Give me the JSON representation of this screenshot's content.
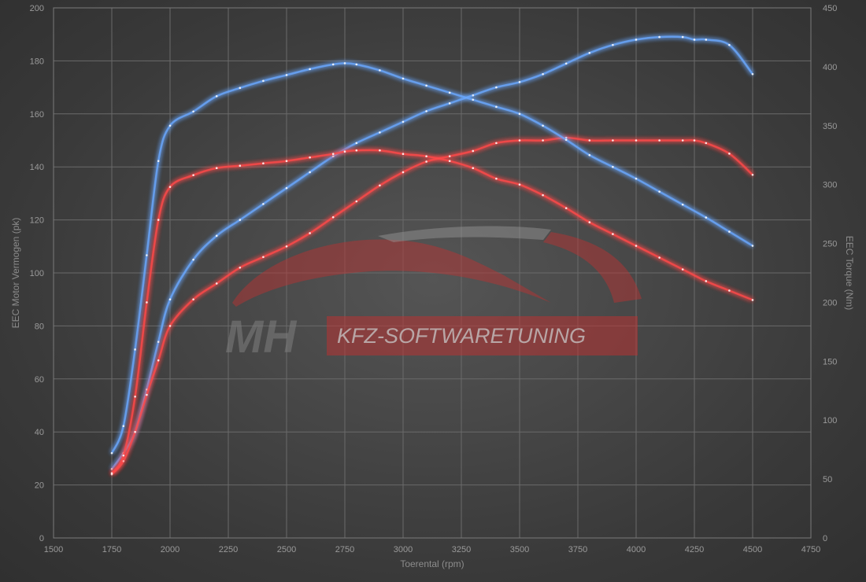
{
  "chart_data": {
    "type": "line",
    "xlabel": "Toerental (rpm)",
    "ylabel_left": "EEC Motor Vermogen (pk)",
    "ylabel_right": "EEC Torque (Nm)",
    "xlim": [
      1500,
      4750
    ],
    "xticks": [
      1500,
      1750,
      2000,
      2250,
      2500,
      2750,
      3000,
      3250,
      3500,
      3750,
      4000,
      4250,
      4500,
      4750
    ],
    "ylim_left": [
      0,
      200
    ],
    "yticks_left": [
      0,
      20,
      40,
      60,
      80,
      100,
      120,
      140,
      160,
      180,
      200
    ],
    "ylim_right": [
      0,
      450
    ],
    "yticks_right": [
      0,
      50,
      100,
      150,
      200,
      250,
      300,
      350,
      400,
      450
    ],
    "grid": true,
    "colors": {
      "tuned": "#6aa8ff",
      "stock": "#ff4a4a"
    },
    "series": [
      {
        "axis": "left",
        "color": "tuned",
        "x": [
          1750,
          1800,
          1850,
          1900,
          1950,
          2000,
          2100,
          2200,
          2300,
          2400,
          2500,
          2600,
          2700,
          2800,
          2900,
          3000,
          3100,
          3200,
          3300,
          3400,
          3500,
          3600,
          3700,
          3800,
          3900,
          4000,
          4100,
          4200,
          4250,
          4300,
          4400,
          4500
        ],
        "y": [
          26,
          32,
          40,
          56,
          74,
          90,
          105,
          114,
          120,
          126,
          132,
          138,
          144,
          149,
          153,
          157,
          161,
          164,
          167,
          170,
          172,
          175,
          179,
          183,
          186,
          188,
          189,
          189,
          188,
          188,
          186,
          175
        ]
      },
      {
        "axis": "left",
        "color": "stock",
        "x": [
          1750,
          1800,
          1850,
          1900,
          1950,
          2000,
          2100,
          2200,
          2300,
          2400,
          2500,
          2600,
          2700,
          2800,
          2900,
          3000,
          3100,
          3200,
          3300,
          3400,
          3500,
          3600,
          3700,
          3800,
          3900,
          4000,
          4100,
          4200,
          4250,
          4300,
          4400,
          4500
        ],
        "y": [
          24,
          29,
          40,
          54,
          67,
          80,
          90,
          96,
          102,
          106,
          110,
          115,
          121,
          127,
          133,
          138,
          142,
          144,
          146,
          149,
          150,
          150,
          151,
          150,
          150,
          150,
          150,
          150,
          150,
          149,
          145,
          137
        ]
      },
      {
        "axis": "right",
        "color": "tuned",
        "x": [
          1750,
          1800,
          1850,
          1900,
          1950,
          2000,
          2100,
          2200,
          2300,
          2400,
          2500,
          2600,
          2700,
          2750,
          2800,
          2900,
          3000,
          3100,
          3200,
          3300,
          3400,
          3500,
          3600,
          3700,
          3800,
          3900,
          4000,
          4100,
          4200,
          4300,
          4400,
          4500
        ],
        "y": [
          72,
          95,
          160,
          240,
          320,
          350,
          362,
          375,
          382,
          388,
          393,
          398,
          402,
          403,
          402,
          397,
          390,
          384,
          378,
          372,
          366,
          360,
          350,
          338,
          325,
          315,
          305,
          294,
          283,
          272,
          260,
          248
        ]
      },
      {
        "axis": "right",
        "color": "stock",
        "x": [
          1750,
          1800,
          1850,
          1900,
          1950,
          2000,
          2100,
          2200,
          2300,
          2400,
          2500,
          2600,
          2700,
          2750,
          2800,
          2900,
          3000,
          3100,
          3200,
          3300,
          3400,
          3500,
          3600,
          3700,
          3800,
          3900,
          4000,
          4100,
          4200,
          4300,
          4400,
          4500
        ],
        "y": [
          55,
          70,
          120,
          200,
          270,
          298,
          308,
          314,
          316,
          318,
          320,
          323,
          326,
          328,
          329,
          329,
          326,
          324,
          320,
          314,
          305,
          300,
          291,
          280,
          268,
          258,
          248,
          238,
          228,
          218,
          210,
          202
        ]
      }
    ]
  },
  "watermark": {
    "brand": "MH",
    "text": "KFZ-SOFTWARETUNING"
  }
}
